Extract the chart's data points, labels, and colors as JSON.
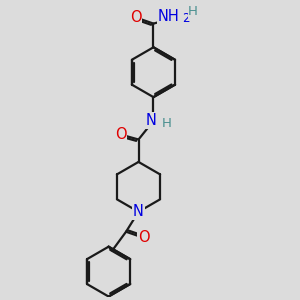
{
  "background_color": "#dcdcdc",
  "bond_color": "#1a1a1a",
  "bond_width": 1.6,
  "dbo": 0.055,
  "atom_colors": {
    "O": "#e00000",
    "N": "#0000e0",
    "H_amide": "#4a9090",
    "H_nh2": "#4a9090"
  },
  "font_size": 10.5,
  "font_size_H": 9.5,
  "xlim": [
    -1.8,
    2.2
  ],
  "ylim": [
    -4.5,
    4.0
  ],
  "s": 0.72
}
